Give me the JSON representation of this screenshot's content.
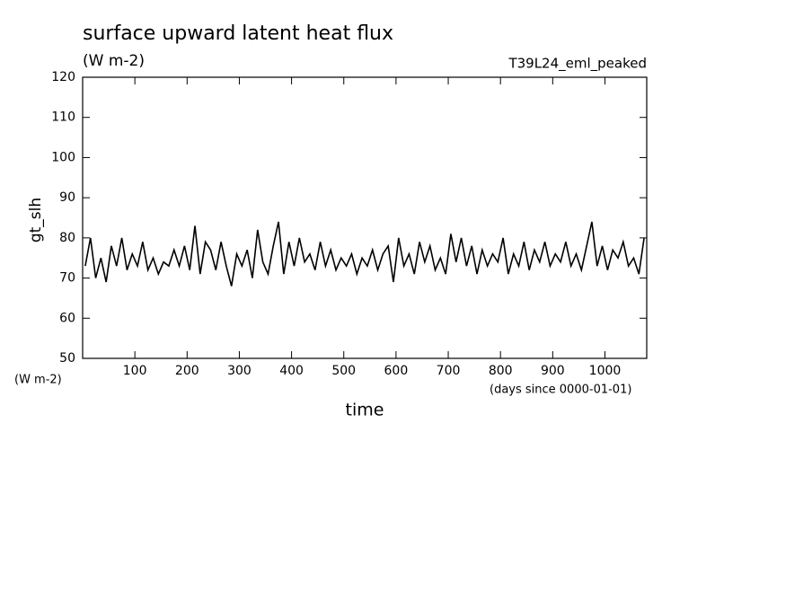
{
  "chart_data": {
    "type": "line",
    "title": "surface upward latent heat flux",
    "subtitle": "(W m-2)",
    "run_label": "T39L24_eml_peaked",
    "y_label": "gt_slh",
    "y_unit": "(W m-2)",
    "x_label": "time",
    "x_unit": "(days since 0000-01-01)",
    "color": "#000000",
    "xlim": [
      0,
      1080
    ],
    "ylim": [
      50,
      120
    ],
    "xticks": [
      100,
      200,
      300,
      400,
      500,
      600,
      700,
      800,
      900,
      1000
    ],
    "yticks": [
      50,
      60,
      70,
      80,
      90,
      100,
      110,
      120
    ],
    "x": [
      5,
      15,
      25,
      35,
      45,
      55,
      65,
      75,
      85,
      95,
      105,
      115,
      125,
      135,
      145,
      155,
      165,
      175,
      185,
      195,
      205,
      215,
      225,
      235,
      245,
      255,
      265,
      275,
      285,
      295,
      305,
      315,
      325,
      335,
      345,
      355,
      365,
      375,
      385,
      395,
      405,
      415,
      425,
      435,
      445,
      455,
      465,
      475,
      485,
      495,
      505,
      515,
      525,
      535,
      545,
      555,
      565,
      575,
      585,
      595,
      605,
      615,
      625,
      635,
      645,
      655,
      665,
      675,
      685,
      695,
      705,
      715,
      725,
      735,
      745,
      755,
      765,
      775,
      785,
      795,
      805,
      815,
      825,
      835,
      845,
      855,
      865,
      875,
      885,
      895,
      905,
      915,
      925,
      935,
      945,
      955,
      965,
      975,
      985,
      995,
      1005,
      1015,
      1025,
      1035,
      1045,
      1055,
      1065,
      1075
    ],
    "values": [
      73,
      80,
      70,
      75,
      69,
      78,
      73,
      80,
      72,
      76,
      73,
      79,
      72,
      75,
      71,
      74,
      73,
      77,
      73,
      78,
      72,
      83,
      71,
      79,
      77,
      72,
      79,
      73,
      68,
      76,
      73,
      77,
      70,
      82,
      74,
      71,
      78,
      84,
      71,
      79,
      73,
      80,
      74,
      76,
      72,
      79,
      73,
      77,
      72,
      75,
      73,
      76,
      71,
      75,
      73,
      77,
      72,
      76,
      78,
      69,
      80,
      73,
      76,
      71,
      79,
      74,
      78,
      72,
      75,
      71,
      81,
      74,
      80,
      73,
      78,
      71,
      77,
      73,
      76,
      74,
      80,
      71,
      76,
      73,
      79,
      72,
      77,
      74,
      79,
      73,
      76,
      74,
      79,
      73,
      76,
      72,
      78,
      84,
      73,
      78,
      72,
      77,
      75,
      79,
      73,
      75,
      71,
      80
    ]
  }
}
